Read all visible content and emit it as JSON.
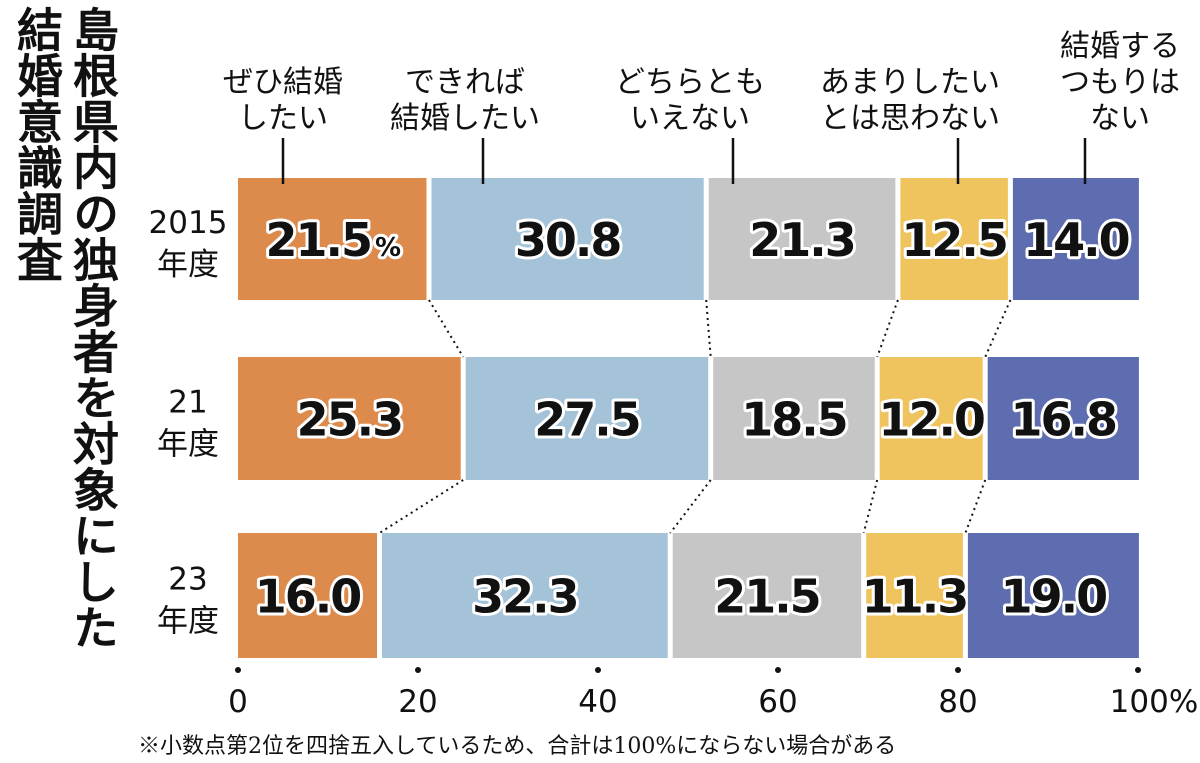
{
  "title": {
    "line1": "島根県内の独身者を対象にした",
    "line2": "結婚意識調査"
  },
  "footnote": "※小数点第2位を四捨五入しているため、合計は100%にならない場合がある",
  "chart_data": {
    "type": "bar",
    "orientation": "horizontal",
    "stacked": true,
    "categories": [
      {
        "line1": "2015",
        "line2": "年度"
      },
      {
        "line1": "21",
        "line2": "年度"
      },
      {
        "line1": "23",
        "line2": "年度"
      }
    ],
    "series": [
      {
        "label_lines": [
          "ぜひ結婚",
          "したい"
        ],
        "color": "#dc8b4c",
        "values": [
          21.5,
          25.3,
          16.0
        ]
      },
      {
        "label_lines": [
          "できれば",
          "結婚したい"
        ],
        "color": "#a4c3d8",
        "values": [
          30.8,
          27.5,
          32.3
        ]
      },
      {
        "label_lines": [
          "どちらとも",
          "いえない"
        ],
        "color": "#c6c6c6",
        "values": [
          21.3,
          18.5,
          21.5
        ]
      },
      {
        "label_lines": [
          "あまりしたい",
          "とは思わない"
        ],
        "color": "#efc45e",
        "values": [
          12.5,
          12.0,
          11.3
        ]
      },
      {
        "label_lines": [
          "結婚する",
          "つもりは",
          "ない"
        ],
        "color": "#5d6daf",
        "values": [
          14.0,
          16.8,
          19.0
        ]
      }
    ],
    "data_labels": [
      [
        "21.5",
        "30.8",
        "21.3",
        "12.5",
        "14.0"
      ],
      [
        "25.3",
        "27.5",
        "18.5",
        "12.0",
        "16.8"
      ],
      [
        "16.0",
        "32.3",
        "21.5",
        "11.3",
        "19.0"
      ]
    ],
    "first_label_unit": "%",
    "x_ticks": [
      "0",
      "20",
      "40",
      "60",
      "80",
      "100%"
    ],
    "xlim": [
      0,
      100
    ],
    "connectors": "dotted",
    "grid": false,
    "legend": "top"
  }
}
